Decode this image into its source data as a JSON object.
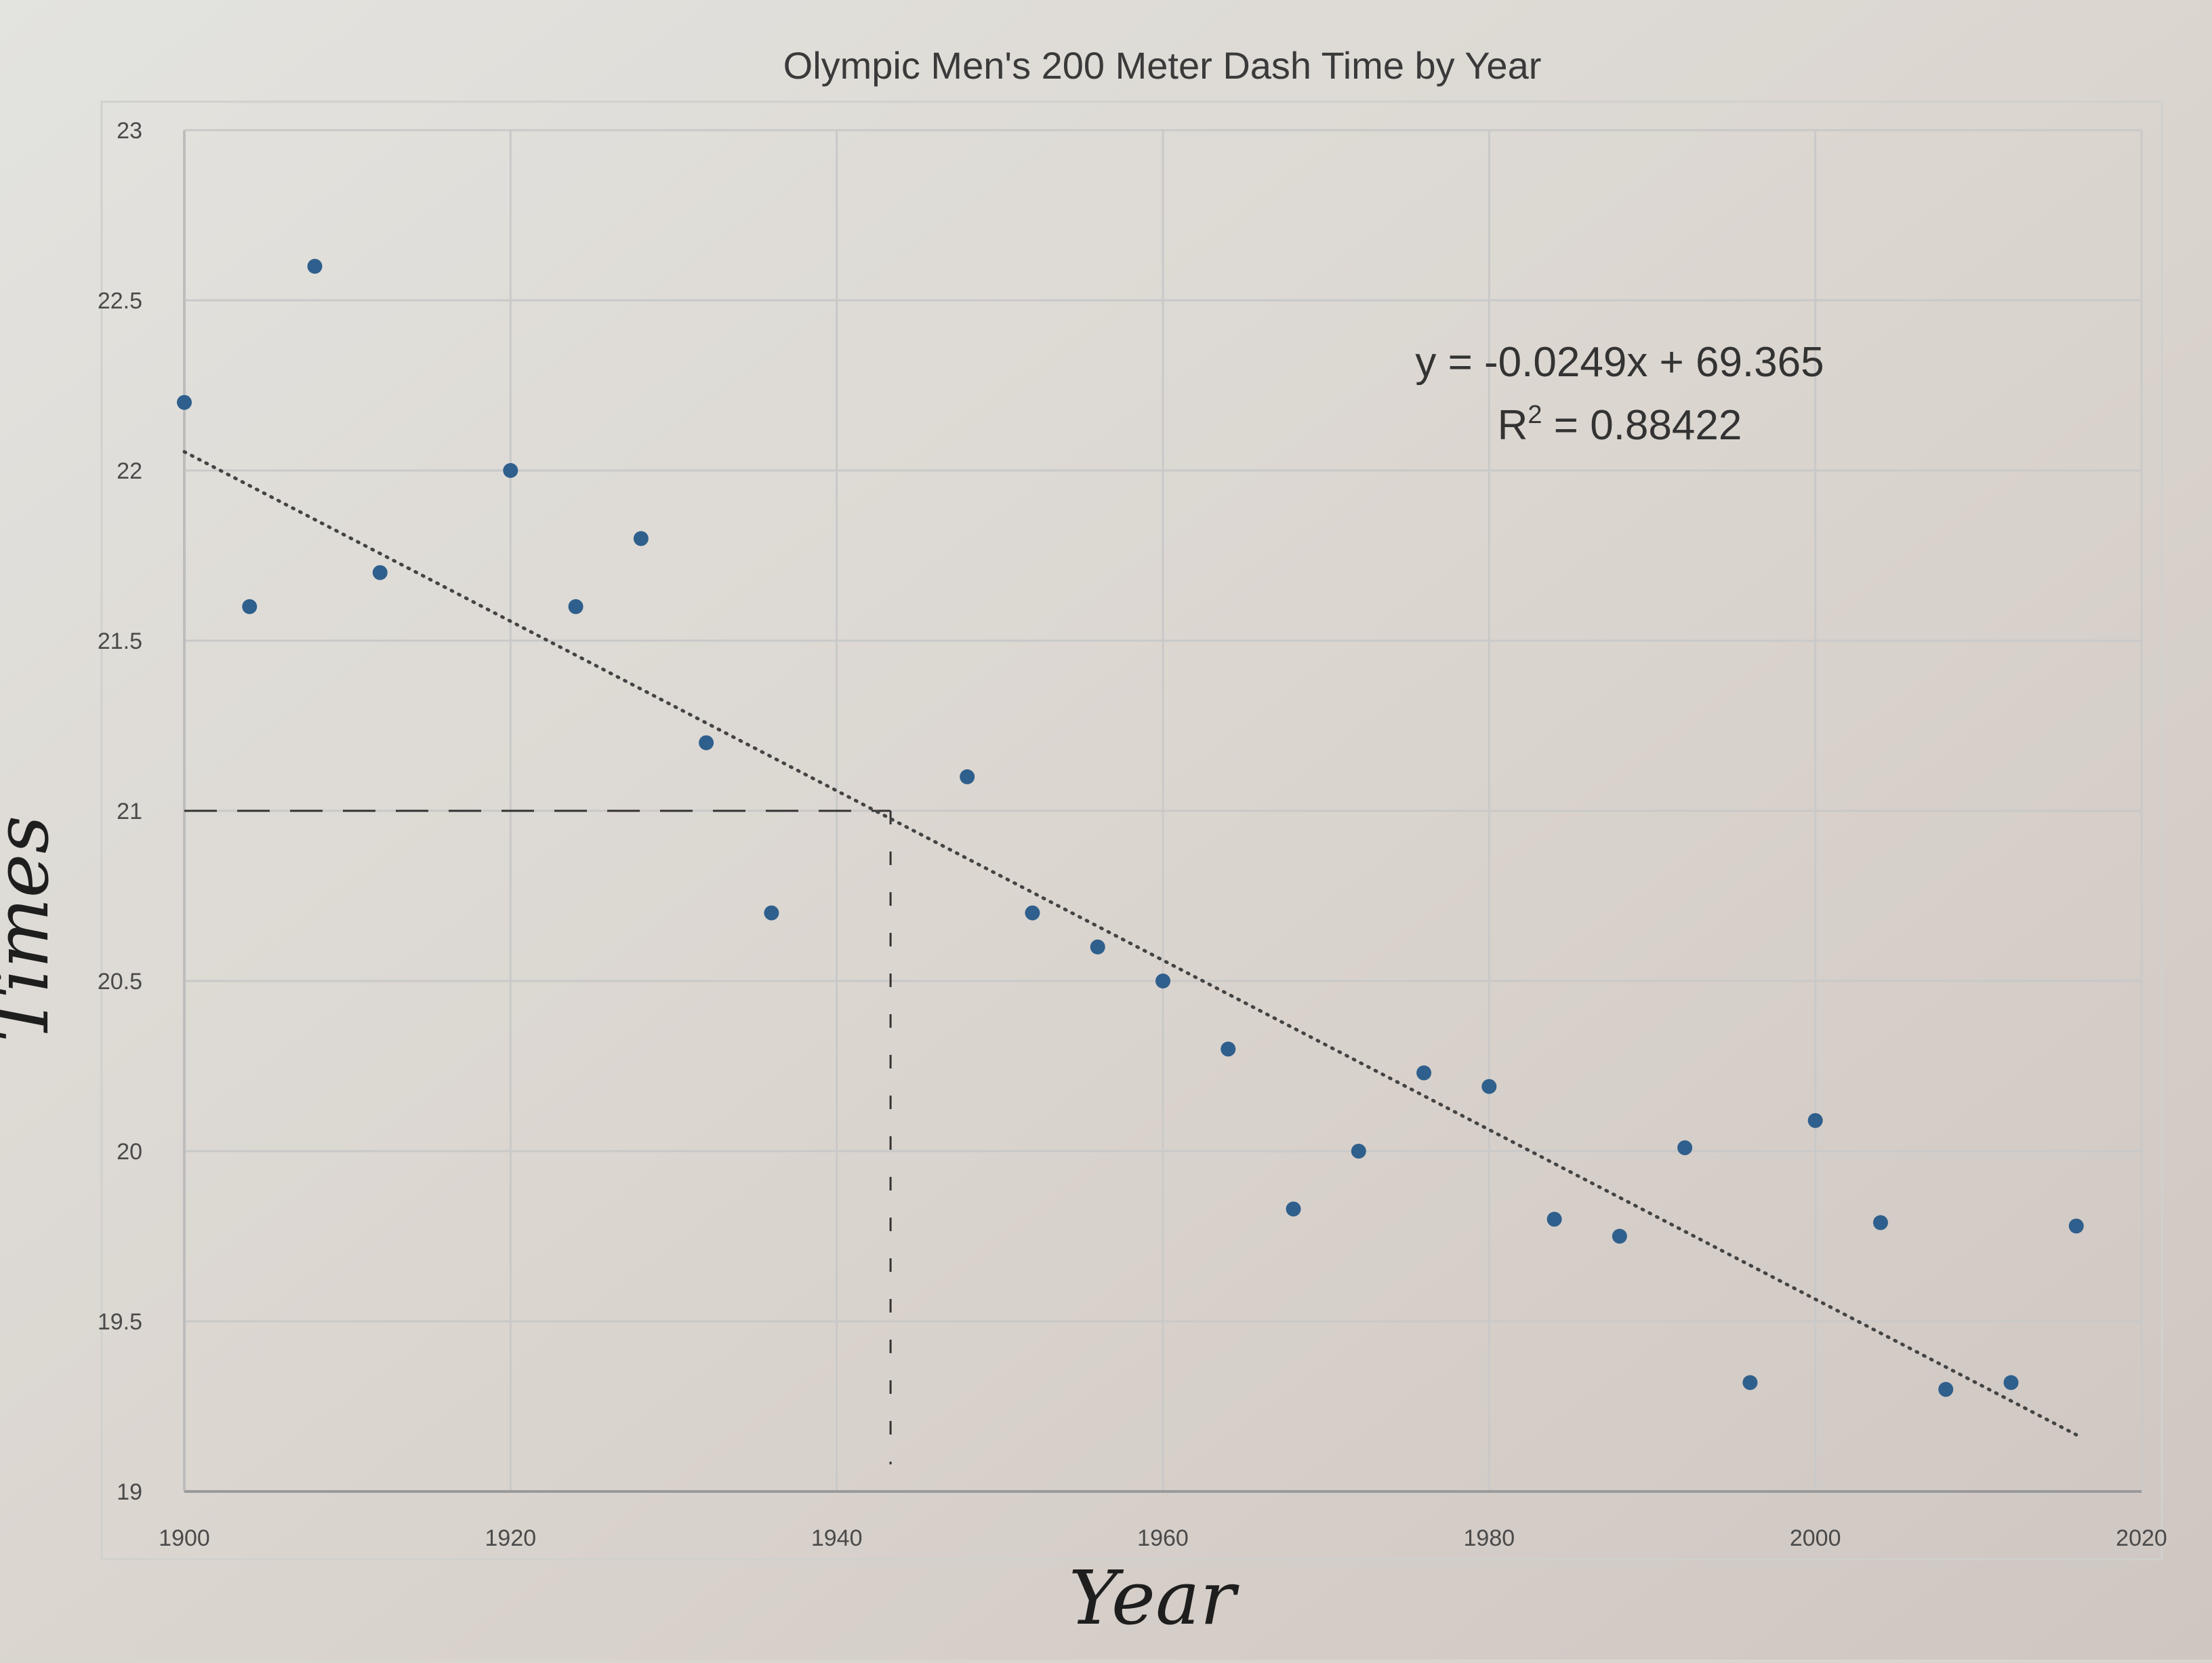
{
  "chart_data": {
    "type": "scatter",
    "title": "Olympic Men's 200 Meter Dash Time by Year",
    "xlabel": "Year",
    "ylabel": "Times",
    "xlim": [
      1900,
      2020
    ],
    "ylim": [
      19,
      23
    ],
    "x_ticks": [
      "1900",
      "1920",
      "1940",
      "1960",
      "1980",
      "2000",
      "2020"
    ],
    "y_ticks": [
      "19",
      "19.5",
      "20",
      "20.5",
      "21",
      "21.5",
      "22",
      "22.5",
      "23"
    ],
    "grid": true,
    "colors": {
      "points": "#2f5f8c",
      "trendline": "#444444",
      "guide": "#333333",
      "grid": "#c9c9c9"
    },
    "series": [
      {
        "x": [
          1900,
          1904,
          1908,
          1912,
          1920,
          1924,
          1928,
          1932,
          1936,
          1948,
          1952,
          1956,
          1960,
          1964,
          1968,
          1972,
          1976,
          1980,
          1984,
          1988,
          1992,
          1996,
          2000,
          2004,
          2008,
          2012,
          2016
        ],
        "y": [
          22.2,
          21.6,
          22.6,
          21.7,
          22.0,
          21.6,
          21.8,
          21.2,
          20.7,
          21.1,
          20.7,
          20.6,
          20.5,
          20.3,
          19.83,
          20.0,
          20.23,
          20.19,
          19.8,
          19.75,
          20.01,
          19.32,
          20.09,
          19.79,
          19.3,
          19.32,
          19.78
        ]
      }
    ],
    "trendline": {
      "type": "linear",
      "slope": -0.0249,
      "intercept": 69.365,
      "x_range": [
        1900,
        2016
      ],
      "style": "dotted"
    },
    "equation_text": "y = -0.0249x + 69.365",
    "r2_label": "R",
    "r2_sup": "2",
    "r2_value": " = 0.88422",
    "guide_lines": {
      "y_value": 21,
      "x_value": 1943.3,
      "style": "dashed"
    }
  }
}
